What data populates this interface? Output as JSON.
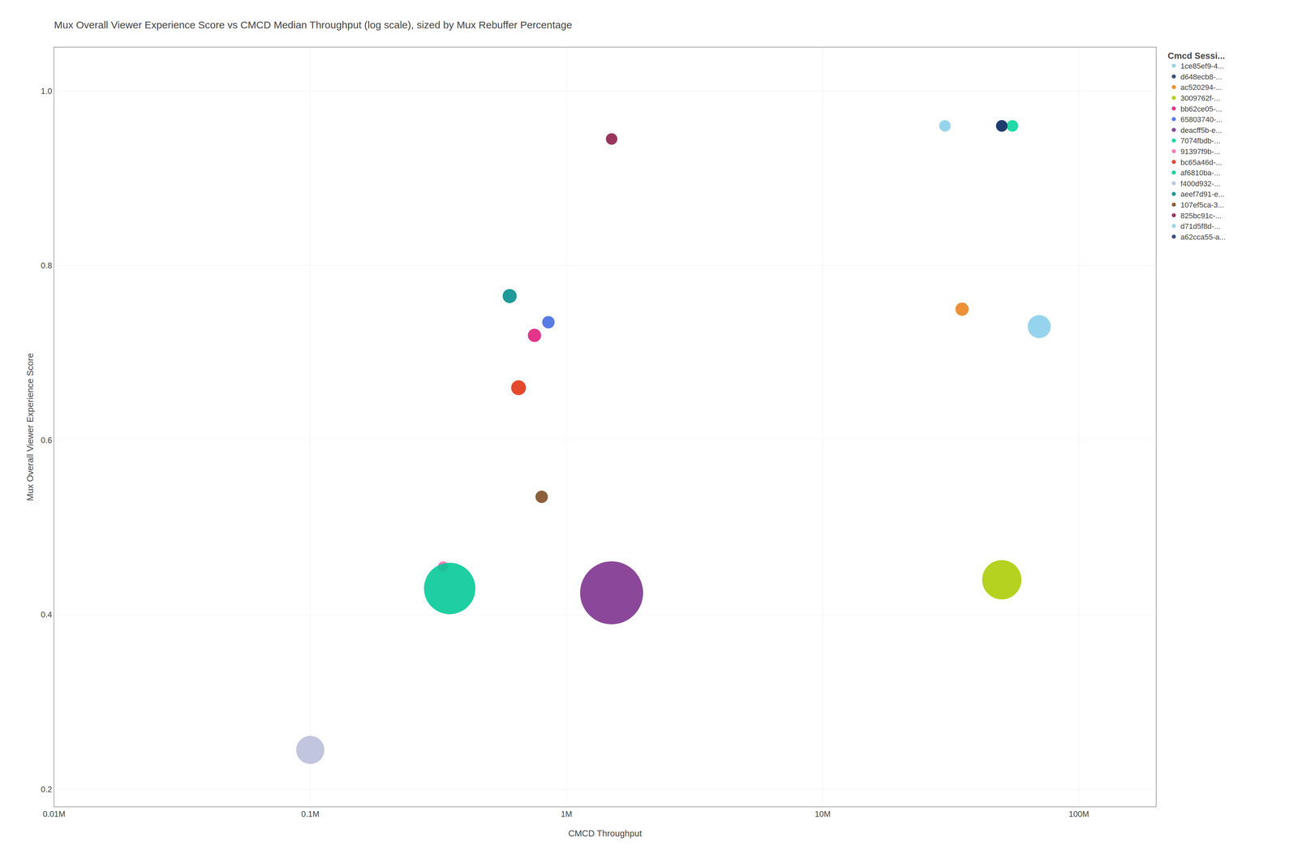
{
  "chart_data": {
    "type": "scatter",
    "title": "Mux Overall Viewer Experience Score vs CMCD Median Throughput (log scale), sized by Mux Rebuffer Percentage",
    "x_label": "CMCD Throughput",
    "y_label": "Mux Overall Viewer Experience Score",
    "legend_title": "Cmcd Sessi...",
    "series": [
      {
        "name": "1ce85ef9-4...",
        "color": "#87CEEB",
        "x": [
          70000000
        ],
        "values": [
          0.73
        ],
        "size": [
          1200
        ]
      },
      {
        "name": "d648ecb8-...",
        "color": "#1B3A6B",
        "x": [
          50000000
        ],
        "values": [
          0.96
        ],
        "size": [
          300
        ]
      },
      {
        "name": "ac520294-...",
        "color": "#E8821A",
        "x": [
          35000000
        ],
        "values": [
          0.75
        ],
        "size": [
          400
        ]
      },
      {
        "name": "3009762f-...",
        "color": "#AACC00",
        "x": [
          50000000
        ],
        "values": [
          0.44
        ],
        "size": [
          3500
        ]
      },
      {
        "name": "bb62ce05-...",
        "color": "#E0197A",
        "x": [
          750000
        ],
        "values": [
          0.72
        ],
        "size": [
          400
        ]
      },
      {
        "name": "65803740-...",
        "color": "#4169E1",
        "x": [
          850000
        ],
        "values": [
          0.735
        ],
        "size": [
          350
        ]
      },
      {
        "name": "deacff5b-e...",
        "color": "#7B2D8B",
        "x": [
          1500000
        ],
        "values": [
          0.425
        ],
        "size": [
          9000
        ]
      },
      {
        "name": "7074fbdb-...",
        "color": "#00D49A",
        "x": [
          55000000
        ],
        "values": [
          0.96
        ],
        "size": [
          300
        ]
      },
      {
        "name": "91397f9b-...",
        "color": "#FF69B4",
        "x": [
          330000
        ],
        "values": [
          0.455
        ],
        "size": [
          250
        ]
      },
      {
        "name": "bc65a46d-...",
        "color": "#E03010",
        "x": [
          650000
        ],
        "values": [
          0.66
        ],
        "size": [
          500
        ]
      },
      {
        "name": "af6810ba-...",
        "color": "#00C896",
        "x": [
          350000
        ],
        "values": [
          0.43
        ],
        "size": [
          6000
        ]
      },
      {
        "name": "f400d932-...",
        "color": "#B8BDD8",
        "x": [
          100000
        ],
        "values": [
          0.245
        ],
        "size": [
          1800
        ]
      },
      {
        "name": "aeef7d91-e...",
        "color": "#008B8B",
        "x": [
          600000
        ],
        "values": [
          0.765
        ],
        "size": [
          450
        ]
      },
      {
        "name": "107ef5ca-3...",
        "color": "#7B4A1F",
        "x": [
          800000
        ],
        "values": [
          0.535
        ],
        "size": [
          350
        ]
      },
      {
        "name": "825bc91c-...",
        "color": "#8B1A4A",
        "x": [
          1500000
        ],
        "values": [
          0.945
        ],
        "size": [
          300
        ]
      },
      {
        "name": "d71d5f8d-...",
        "color": "#87CEEB",
        "x": [
          30000000
        ],
        "values": [
          0.96
        ],
        "size": [
          300
        ]
      },
      {
        "name": "a62cca55-a...",
        "color": "#1B3A6B",
        "x": [
          50000000
        ],
        "values": [
          0.96
        ],
        "size": [
          300
        ]
      }
    ],
    "log": "x",
    "xlim": [
      10000,
      200000000
    ],
    "xticks": [
      {
        "value": 10000,
        "label": "0.01M"
      },
      {
        "value": 100000,
        "label": "0.1M"
      },
      {
        "value": 1000000,
        "label": "1M"
      },
      {
        "value": 10000000,
        "label": "10M"
      },
      {
        "value": 100000000,
        "label": "100M"
      }
    ],
    "ylim": [
      0.18,
      1.05
    ],
    "yticks": [
      0.2,
      0.4,
      0.6,
      0.8,
      {
        "value": 1.0,
        "label": "1.0"
      }
    ],
    "grid": true,
    "legend": "right"
  }
}
